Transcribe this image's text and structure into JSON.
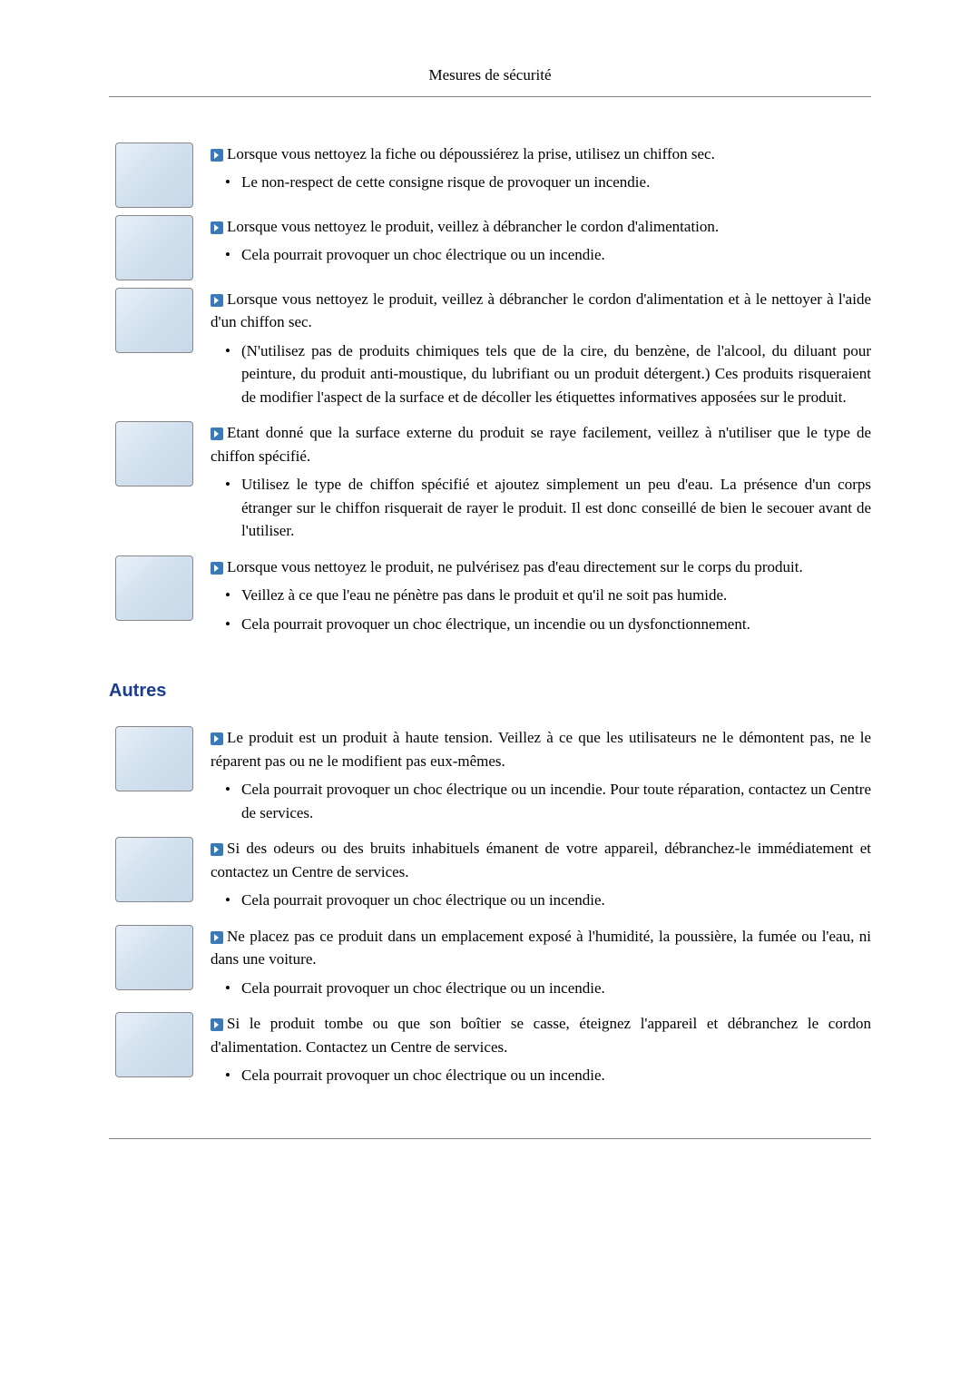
{
  "header": {
    "title": "Mesures de sécurité"
  },
  "section1": {
    "items": [
      {
        "lead": "Lorsque vous nettoyez la fiche ou dépoussiérez la prise, utilisez un chiffon sec.",
        "bullets": [
          "Le non-respect de cette consigne risque de provoquer un incendie."
        ]
      },
      {
        "lead": "Lorsque vous nettoyez le produit, veillez à débrancher le cordon d'alimentation.",
        "bullets": [
          "Cela pourrait provoquer un choc électrique ou un incendie."
        ]
      },
      {
        "lead": "Lorsque vous nettoyez le produit, veillez à débrancher le cordon d'alimentation et à le nettoyer à l'aide d'un chiffon sec.",
        "bullets": [
          "(N'utilisez pas de produits chimiques tels que de la cire, du benzène, de l'alcool, du diluant pour peinture, du produit anti-moustique, du lubrifiant ou un produit détergent.) Ces produits risqueraient de modifier l'aspect de la surface et de décoller les étiquettes informatives apposées sur le produit."
        ]
      },
      {
        "lead": "Etant donné que la surface externe du produit se raye facilement, veillez à n'utiliser que le type de chiffon spécifié.",
        "bullets": [
          "Utilisez le type de chiffon spécifié et ajoutez simplement un peu d'eau. La présence d'un corps étranger sur le chiffon risquerait de rayer le produit. Il est donc conseillé de bien le secouer avant de l'utiliser."
        ]
      },
      {
        "lead": "Lorsque vous nettoyez le produit, ne pulvérisez pas d'eau directement sur le corps du produit.",
        "bullets": [
          "Veillez à ce que l'eau ne pénètre pas dans le produit et qu'il ne soit pas humide.",
          "Cela pourrait provoquer un choc électrique, un incendie ou un dysfonctionnement."
        ]
      }
    ]
  },
  "section2": {
    "heading": "Autres",
    "items": [
      {
        "lead": "Le produit est un produit à haute tension. Veillez à ce que les utilisateurs ne le démontent pas, ne le réparent pas ou ne le modifient pas eux-mêmes.",
        "bullets": [
          "Cela pourrait provoquer un choc électrique ou un incendie. Pour toute réparation, contactez un Centre de services."
        ]
      },
      {
        "lead": "Si des odeurs ou des bruits inhabituels émanent de votre appareil, débranchez-le immédiatement et contactez un Centre de services.",
        "bullets": [
          "Cela pourrait provoquer un choc électrique ou un incendie."
        ]
      },
      {
        "lead": "Ne placez pas ce produit dans un emplacement exposé à l'humidité, la poussière, la fumée ou l'eau, ni dans une voiture.",
        "bullets": [
          "Cela pourrait provoquer un choc électrique ou un incendie."
        ]
      },
      {
        "lead": "Si le produit tombe ou que son boîtier se casse, éteignez l'appareil et débranchez le cordon d'alimentation. Contactez un Centre de services.",
        "bullets": [
          "Cela pourrait provoquer un choc électrique ou un incendie."
        ]
      }
    ]
  }
}
